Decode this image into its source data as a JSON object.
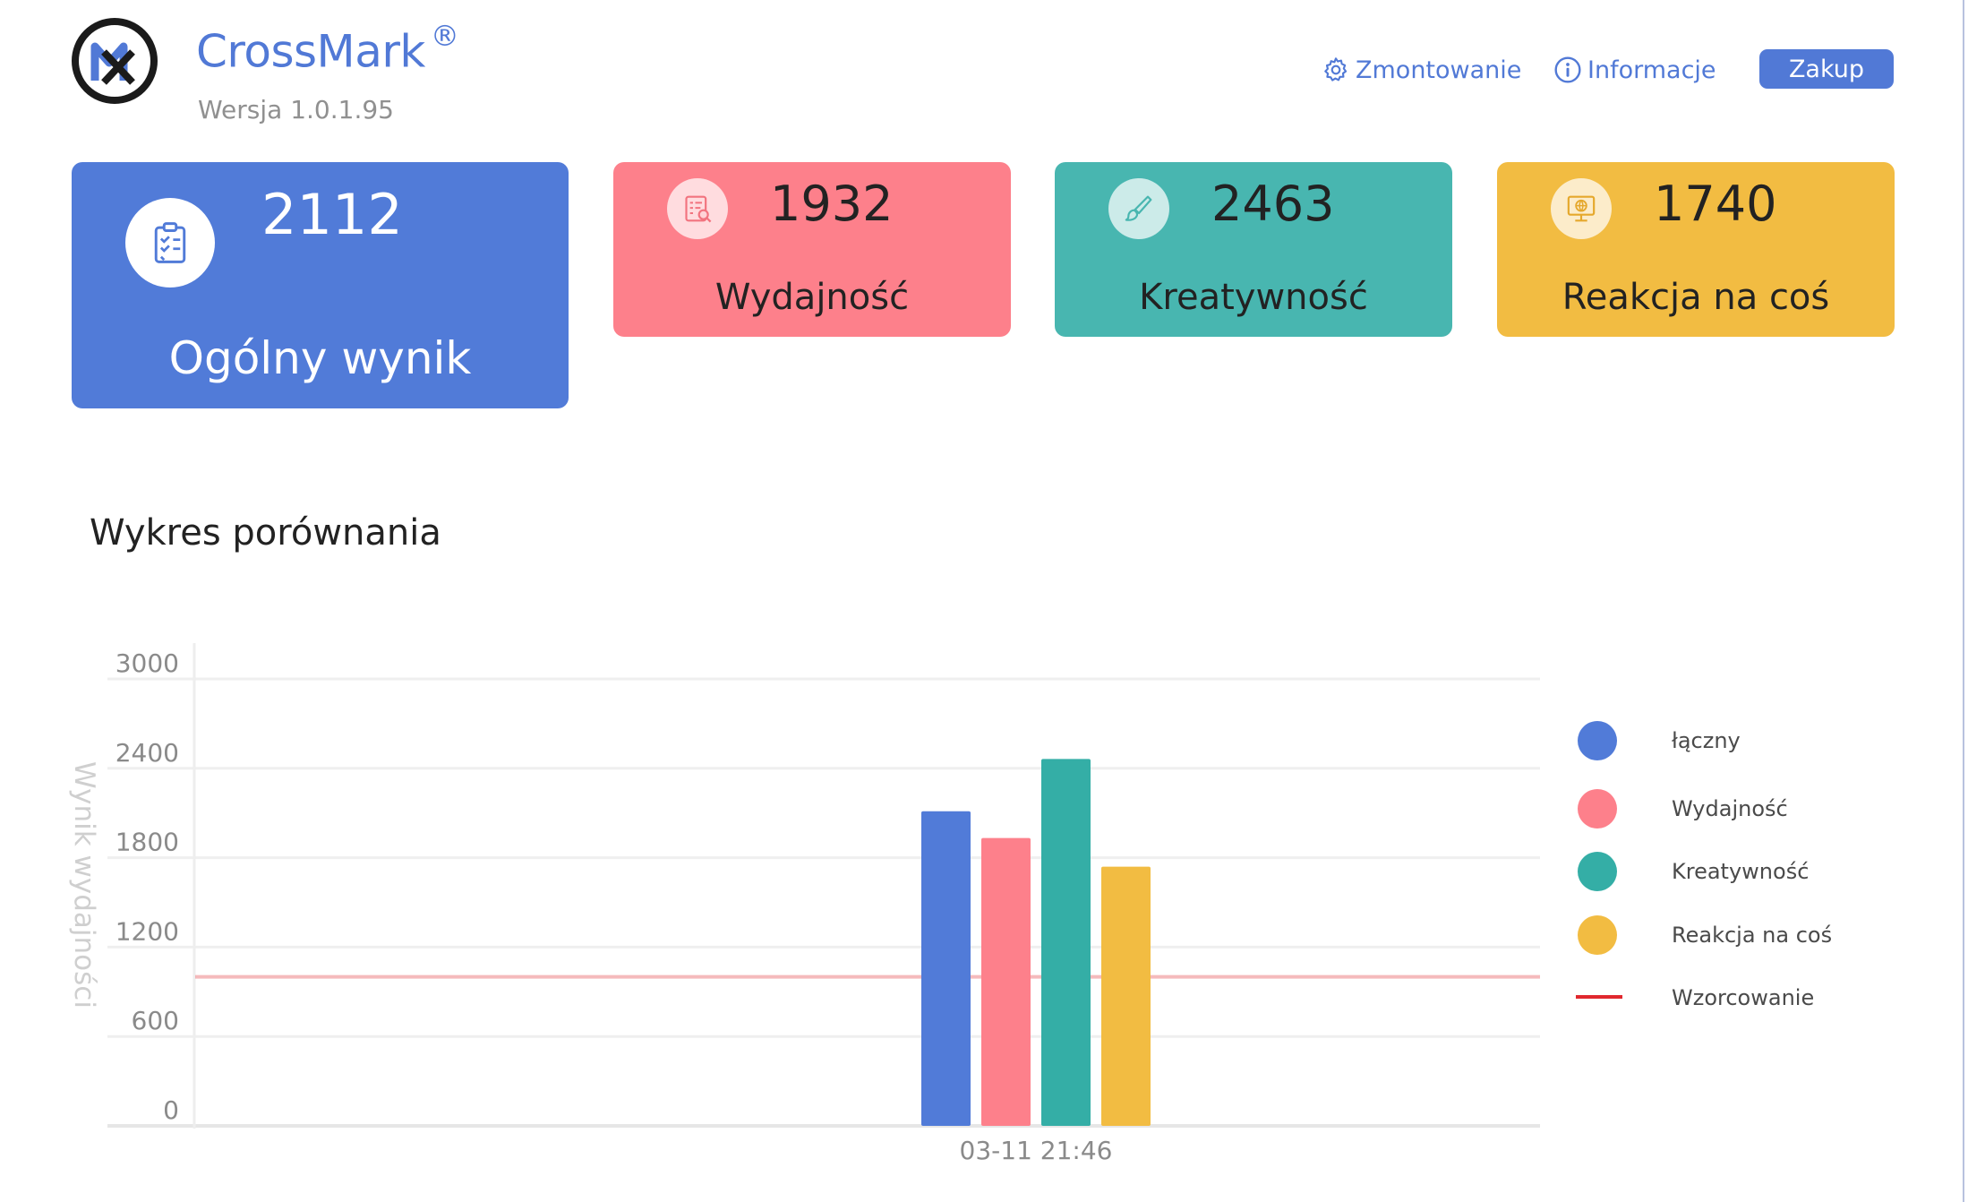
{
  "header": {
    "app_name": "CrossMark",
    "registered_mark": "®",
    "version": "Wersja 1.0.1.95",
    "settings_label": "Zmontowanie",
    "info_label": "Informacje",
    "buy_label": "Zakup"
  },
  "cards": {
    "overall": {
      "score": "2112",
      "label": "Ogólny wynik",
      "color": "#517bd8"
    },
    "performance": {
      "score": "1932",
      "label": "Wydajność",
      "color": "#fd808b"
    },
    "creativity": {
      "score": "2463",
      "label": "Kreatywność",
      "color": "#48b6b0"
    },
    "reaction": {
      "score": "1740",
      "label": "Reakcja na coś",
      "color": "#f2bc42"
    }
  },
  "section_title": "Wykres porównania",
  "chart_data": {
    "type": "bar",
    "categories": [
      "03-11 21:46"
    ],
    "ylabel": "Wynik wydajności",
    "ylim": [
      0,
      3000
    ],
    "yticks": [
      "3000",
      "2400",
      "1800",
      "1200",
      "600",
      "0"
    ],
    "grid": true,
    "legend_position": "right",
    "series": [
      {
        "name": "łączny",
        "values": [
          2112
        ],
        "color": "#517bd8"
      },
      {
        "name": "Wydajność",
        "values": [
          1932
        ],
        "color": "#fd808b"
      },
      {
        "name": "Kreatywność",
        "values": [
          2463
        ],
        "color": "#34aea6"
      },
      {
        "name": "Reakcja na coś",
        "values": [
          1740
        ],
        "color": "#f2bc42"
      }
    ],
    "reference_line": {
      "name": "Wzorcowanie",
      "value": 1000,
      "color": "#e0282e"
    }
  }
}
